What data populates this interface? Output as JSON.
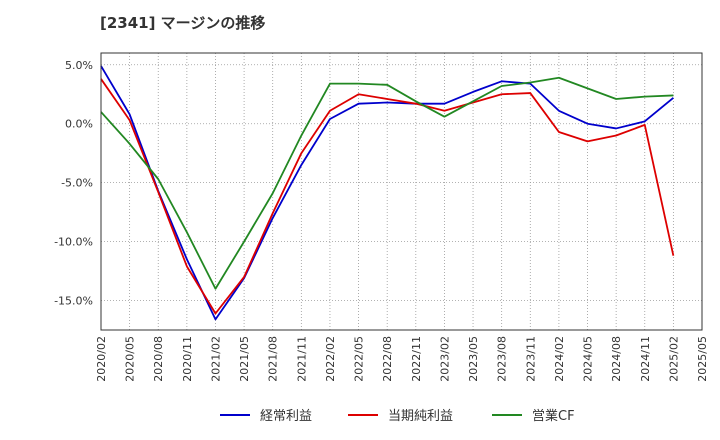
{
  "chart_data": {
    "type": "line",
    "title": "[2341]  マージンの推移",
    "xlabel": "",
    "ylabel": "",
    "ylim": [
      -17.5,
      6.0
    ],
    "yticks": [
      5.0,
      0.0,
      -5.0,
      -10.0,
      -15.0
    ],
    "ytick_labels": [
      "5.0%",
      "0.0%",
      "-5.0%",
      "-10.0%",
      "-15.0%"
    ],
    "categories": [
      "2020/02",
      "2020/05",
      "2020/08",
      "2020/11",
      "2021/02",
      "2021/05",
      "2021/08",
      "2021/11",
      "2022/02",
      "2022/05",
      "2022/08",
      "2022/11",
      "2023/02",
      "2023/05",
      "2023/08",
      "2023/11",
      "2024/02",
      "2024/05",
      "2024/08",
      "2024/11",
      "2025/02",
      "2025/05"
    ],
    "series": [
      {
        "name": "経常利益",
        "color": "#0000cc",
        "values": [
          4.9,
          0.8,
          -5.7,
          -11.5,
          -16.6,
          -13.1,
          -8.0,
          -3.5,
          0.4,
          1.7,
          1.8,
          1.7,
          1.7,
          2.7,
          3.6,
          3.4,
          1.1,
          0.0,
          -0.4,
          0.2,
          2.2,
          null
        ]
      },
      {
        "name": "当期純利益",
        "color": "#dd0000",
        "values": [
          3.8,
          0.3,
          -5.8,
          -12.1,
          -16.1,
          -13.0,
          -7.6,
          -2.5,
          1.1,
          2.5,
          2.1,
          1.7,
          1.1,
          1.8,
          2.5,
          2.6,
          -0.7,
          -1.5,
          -1.0,
          -0.1,
          -11.2,
          null
        ]
      },
      {
        "name": "営業CF",
        "color": "#228822",
        "values": [
          1.0,
          -1.7,
          -4.7,
          -9.2,
          -14.0,
          -10.0,
          -5.9,
          -1.0,
          3.4,
          3.4,
          3.3,
          1.9,
          0.6,
          1.9,
          3.2,
          3.5,
          3.9,
          3.0,
          2.1,
          2.3,
          2.4,
          null
        ]
      }
    ],
    "legend_position": "bottom",
    "grid": true
  }
}
